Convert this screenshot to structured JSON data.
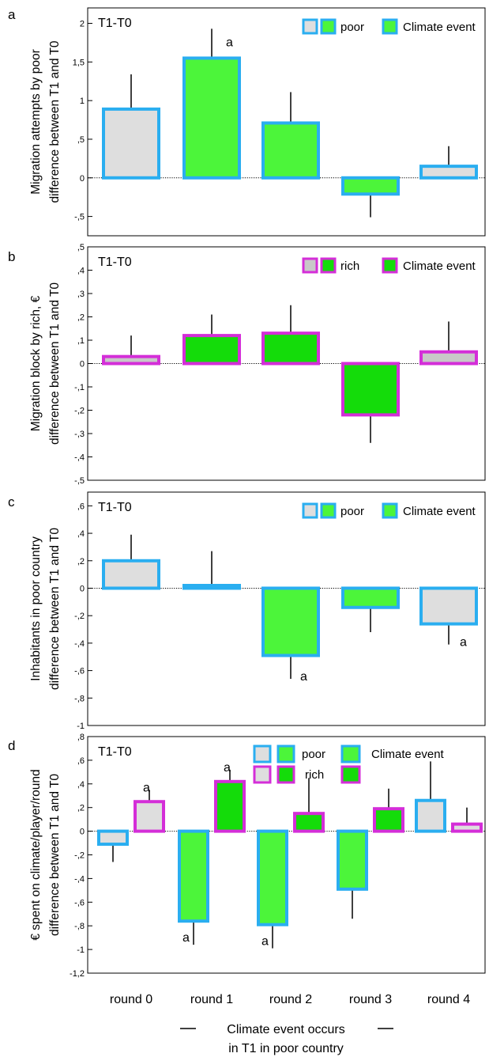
{
  "colors": {
    "poor_border": "#2aaef0",
    "rich_border": "#d42ed8",
    "light_green": "#4cf53a",
    "dark_green": "#14dc0a",
    "grey_fill": "#dedede",
    "rich_grey_fill": "#c8c8c8",
    "axis": "#000000"
  },
  "footer": {
    "line1": "Climate event occurs",
    "line2": "in T1 in poor country"
  },
  "chart_data": [
    {
      "type": "bar",
      "panel_letter": "a",
      "condition_label": "T1-T0",
      "ylabel": [
        "Migration attempts by poor",
        "difference between T1 and T0"
      ],
      "ylim": [
        -0.75,
        2.2
      ],
      "yticks": [
        -0.5,
        0,
        0.5,
        1,
        1.5,
        2
      ],
      "ytick_labels": [
        "-,5",
        "0",
        ",5",
        "1",
        "1,5",
        "2"
      ],
      "categories": [
        "round 0",
        "round 1",
        "round 2",
        "round 3",
        "round 4"
      ],
      "legend": {
        "placement": "top-right",
        "label_group": "poor",
        "label_event": "Climate event"
      },
      "bars": [
        {
          "round": "round 0",
          "value": 0.89,
          "error": 0.45,
          "border": "poor",
          "fill": "grey",
          "annotation": ""
        },
        {
          "round": "round 1",
          "value": 1.55,
          "error": 0.38,
          "border": "poor",
          "fill": "light_green",
          "annotation": "a"
        },
        {
          "round": "round 2",
          "value": 0.71,
          "error": 0.4,
          "border": "poor",
          "fill": "light_green",
          "annotation": ""
        },
        {
          "round": "round 3",
          "value": -0.21,
          "error": 0.3,
          "border": "poor",
          "fill": "light_green",
          "annotation": ""
        },
        {
          "round": "round 4",
          "value": 0.15,
          "error": 0.26,
          "border": "poor",
          "fill": "grey",
          "annotation": ""
        }
      ]
    },
    {
      "type": "bar",
      "panel_letter": "b",
      "condition_label": "T1-T0",
      "ylabel": [
        "Migration block by rich, €",
        "difference between T1 and T0"
      ],
      "ylim": [
        -0.5,
        0.5
      ],
      "yticks": [
        -0.5,
        -0.4,
        -0.3,
        -0.2,
        -0.1,
        0,
        0.1,
        0.2,
        0.3,
        0.4,
        0.5
      ],
      "ytick_labels": [
        "-,5",
        "-,4",
        "-,3",
        "-,2",
        "-,1",
        "0",
        ",1",
        ",2",
        ",3",
        ",4",
        ",5"
      ],
      "categories": [
        "round 0",
        "round 1",
        "round 2",
        "round 3",
        "round 4"
      ],
      "legend": {
        "placement": "top-right",
        "label_group": "rich",
        "label_event": "Climate event"
      },
      "bars": [
        {
          "round": "round 0",
          "value": 0.03,
          "error": 0.09,
          "border": "rich",
          "fill": "rich_grey",
          "annotation": ""
        },
        {
          "round": "round 1",
          "value": 0.12,
          "error": 0.09,
          "border": "rich",
          "fill": "dark_green",
          "annotation": ""
        },
        {
          "round": "round 2",
          "value": 0.13,
          "error": 0.12,
          "border": "rich",
          "fill": "dark_green",
          "annotation": ""
        },
        {
          "round": "round 3",
          "value": -0.22,
          "error": 0.12,
          "border": "rich",
          "fill": "dark_green",
          "annotation": ""
        },
        {
          "round": "round 4",
          "value": 0.05,
          "error": 0.13,
          "border": "rich",
          "fill": "rich_grey",
          "annotation": ""
        }
      ]
    },
    {
      "type": "bar",
      "panel_letter": "c",
      "condition_label": "T1-T0",
      "ylabel": [
        "Inhabitants in poor country",
        "difference between T1 and T0"
      ],
      "ylim": [
        -1,
        0.7
      ],
      "yticks": [
        -1,
        -0.8,
        -0.6,
        -0.4,
        -0.2,
        0,
        0.2,
        0.4,
        0.6
      ],
      "ytick_labels": [
        "-1",
        "-,8",
        "-,6",
        "-,4",
        "-,2",
        "0",
        ",2",
        ",4",
        ",6"
      ],
      "categories": [
        "round 0",
        "round 1",
        "round 2",
        "round 3",
        "round 4"
      ],
      "legend": {
        "placement": "top-right",
        "label_group": "poor",
        "label_event": "Climate event"
      },
      "bars": [
        {
          "round": "round 0",
          "value": 0.2,
          "error": 0.19,
          "border": "poor",
          "fill": "grey",
          "annotation": ""
        },
        {
          "round": "round 1",
          "value": 0.02,
          "error": 0.25,
          "border": "poor",
          "fill": "light_green",
          "annotation": ""
        },
        {
          "round": "round 2",
          "value": -0.49,
          "error": 0.17,
          "border": "poor",
          "fill": "light_green",
          "annotation": "a"
        },
        {
          "round": "round 3",
          "value": -0.14,
          "error": 0.18,
          "border": "poor",
          "fill": "light_green",
          "annotation": ""
        },
        {
          "round": "round 4",
          "value": -0.26,
          "error": 0.15,
          "border": "poor",
          "fill": "grey",
          "annotation": "a"
        }
      ]
    },
    {
      "type": "bar",
      "panel_letter": "d",
      "condition_label": "T1-T0",
      "ylabel": [
        "€ spent on climate/player/round",
        "difference between T1 and T0"
      ],
      "ylim": [
        -1.2,
        0.8
      ],
      "yticks": [
        -1.2,
        -1,
        -0.8,
        -0.6,
        -0.4,
        -0.2,
        0,
        0.2,
        0.4,
        0.6,
        0.8
      ],
      "ytick_labels": [
        "-1,2",
        "-1",
        "-,8",
        "-,6",
        "-,4",
        "-,2",
        "0",
        ",2",
        ",4",
        ",6",
        ",8"
      ],
      "categories": [
        "round 0",
        "round 1",
        "round 2",
        "round 3",
        "round 4"
      ],
      "legend": {
        "placement": "top-right",
        "label_poor": "poor",
        "label_rich": "rich",
        "label_event": "Climate event"
      },
      "bars": [
        {
          "round": "round 0",
          "group": "poor",
          "value": -0.11,
          "error": 0.15,
          "border": "poor",
          "fill": "grey",
          "annotation": ""
        },
        {
          "round": "round 0",
          "group": "rich",
          "value": 0.25,
          "error": 0.1,
          "border": "rich",
          "fill": "grey",
          "annotation": "a"
        },
        {
          "round": "round 1",
          "group": "poor",
          "value": -0.76,
          "error": 0.2,
          "border": "poor",
          "fill": "light_green",
          "annotation": "a"
        },
        {
          "round": "round 1",
          "group": "rich",
          "value": 0.42,
          "error": 0.1,
          "border": "rich",
          "fill": "dark_green",
          "annotation": "a"
        },
        {
          "round": "round 2",
          "group": "poor",
          "value": -0.79,
          "error": 0.2,
          "border": "poor",
          "fill": "light_green",
          "annotation": "a"
        },
        {
          "round": "round 2",
          "group": "rich",
          "value": 0.15,
          "error": 0.3,
          "border": "rich",
          "fill": "dark_green",
          "annotation": ""
        },
        {
          "round": "round 3",
          "group": "poor",
          "value": -0.49,
          "error": 0.25,
          "border": "poor",
          "fill": "light_green",
          "annotation": ""
        },
        {
          "round": "round 3",
          "group": "rich",
          "value": 0.19,
          "error": 0.17,
          "border": "rich",
          "fill": "dark_green",
          "annotation": ""
        },
        {
          "round": "round 4",
          "group": "poor",
          "value": 0.26,
          "error": 0.33,
          "border": "poor",
          "fill": "grey",
          "annotation": ""
        },
        {
          "round": "round 4",
          "group": "rich",
          "value": 0.06,
          "error": 0.14,
          "border": "rich",
          "fill": "grey",
          "annotation": ""
        }
      ]
    }
  ]
}
